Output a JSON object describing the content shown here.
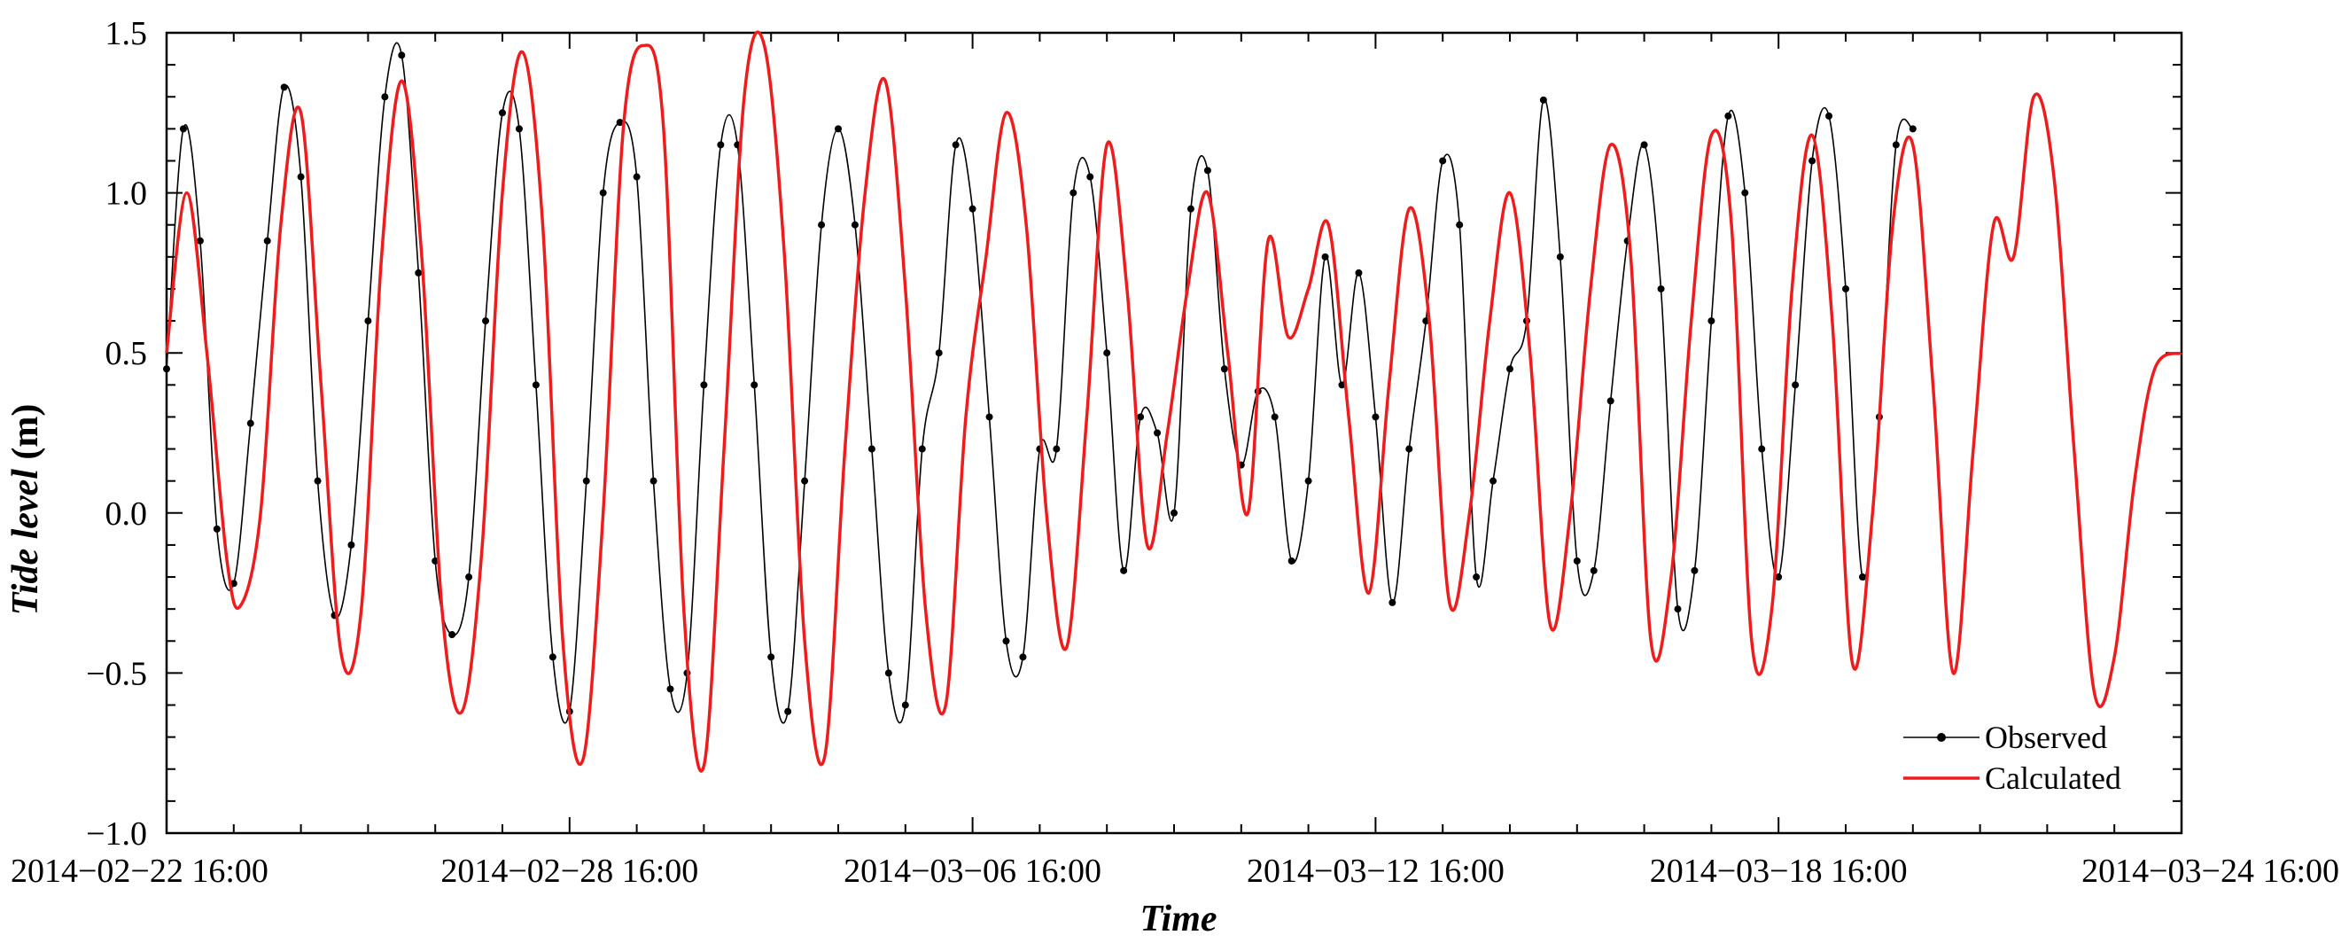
{
  "chart_data": {
    "type": "line",
    "title": "",
    "xlabel": "Time",
    "ylabel_main": "Tide level",
    "ylabel_unit": " (m)",
    "ylim": [
      -1.0,
      1.5
    ],
    "yticks": [
      -1.0,
      -0.5,
      0.0,
      0.5,
      1.0,
      1.5
    ],
    "ytick_labels": [
      "−1.0",
      "−0.5",
      "0.0",
      "0.5",
      "1.0",
      "1.5"
    ],
    "xlim_days": [
      0,
      30
    ],
    "xticks_days": [
      0,
      6,
      12,
      18,
      24,
      30
    ],
    "xtick_labels": [
      "2014−02−22 16:00",
      "2014−02−28 16:00",
      "2014−03−06 16:00",
      "2014−03−12 16:00",
      "2014−03−18 16:00",
      "2014−03−24 16:00"
    ],
    "legend_position": "bottom-right",
    "series": [
      {
        "name": "Observed",
        "color": "#000000",
        "marker": "dot",
        "x_unit": "days since 2014-02-22 16:00",
        "points": [
          [
            0.0,
            0.45
          ],
          [
            0.25,
            1.2
          ],
          [
            0.5,
            0.85
          ],
          [
            0.75,
            -0.05
          ],
          [
            1.0,
            -0.22
          ],
          [
            1.25,
            0.28
          ],
          [
            1.5,
            0.85
          ],
          [
            1.75,
            1.33
          ],
          [
            2.0,
            1.05
          ],
          [
            2.25,
            0.1
          ],
          [
            2.5,
            -0.32
          ],
          [
            2.75,
            -0.1
          ],
          [
            3.0,
            0.6
          ],
          [
            3.25,
            1.3
          ],
          [
            3.5,
            1.43
          ],
          [
            3.75,
            0.75
          ],
          [
            4.0,
            -0.15
          ],
          [
            4.25,
            -0.38
          ],
          [
            4.5,
            -0.2
          ],
          [
            4.75,
            0.6
          ],
          [
            5.0,
            1.25
          ],
          [
            5.25,
            1.2
          ],
          [
            5.5,
            0.4
          ],
          [
            5.75,
            -0.45
          ],
          [
            6.0,
            -0.62
          ],
          [
            6.25,
            0.1
          ],
          [
            6.5,
            1.0
          ],
          [
            6.75,
            1.22
          ],
          [
            7.0,
            1.05
          ],
          [
            7.25,
            0.1
          ],
          [
            7.5,
            -0.55
          ],
          [
            7.75,
            -0.5
          ],
          [
            8.0,
            0.4
          ],
          [
            8.25,
            1.15
          ],
          [
            8.5,
            1.15
          ],
          [
            8.75,
            0.4
          ],
          [
            9.0,
            -0.45
          ],
          [
            9.25,
            -0.62
          ],
          [
            9.5,
            0.1
          ],
          [
            9.75,
            0.9
          ],
          [
            10.0,
            1.2
          ],
          [
            10.25,
            0.9
          ],
          [
            10.5,
            0.2
          ],
          [
            10.75,
            -0.5
          ],
          [
            11.0,
            -0.6
          ],
          [
            11.25,
            0.2
          ],
          [
            11.5,
            0.5
          ],
          [
            11.75,
            1.15
          ],
          [
            12.0,
            0.95
          ],
          [
            12.25,
            0.3
          ],
          [
            12.5,
            -0.4
          ],
          [
            12.75,
            -0.45
          ],
          [
            13.0,
            0.2
          ],
          [
            13.25,
            0.2
          ],
          [
            13.5,
            1.0
          ],
          [
            13.75,
            1.05
          ],
          [
            14.0,
            0.5
          ],
          [
            14.25,
            -0.18
          ],
          [
            14.5,
            0.3
          ],
          [
            14.75,
            0.25
          ],
          [
            15.0,
            0.0
          ],
          [
            15.25,
            0.95
          ],
          [
            15.5,
            1.07
          ],
          [
            15.75,
            0.45
          ],
          [
            16.0,
            0.15
          ],
          [
            16.25,
            0.38
          ],
          [
            16.5,
            0.3
          ],
          [
            16.75,
            -0.15
          ],
          [
            17.0,
            0.1
          ],
          [
            17.25,
            0.8
          ],
          [
            17.5,
            0.4
          ],
          [
            17.75,
            0.75
          ],
          [
            18.0,
            0.3
          ],
          [
            18.25,
            -0.28
          ],
          [
            18.5,
            0.2
          ],
          [
            18.75,
            0.6
          ],
          [
            19.0,
            1.1
          ],
          [
            19.25,
            0.9
          ],
          [
            19.5,
            -0.2
          ],
          [
            19.75,
            0.1
          ],
          [
            20.0,
            0.45
          ],
          [
            20.25,
            0.6
          ],
          [
            20.5,
            1.29
          ],
          [
            20.75,
            0.8
          ],
          [
            21.0,
            -0.15
          ],
          [
            21.25,
            -0.18
          ],
          [
            21.5,
            0.35
          ],
          [
            21.75,
            0.85
          ],
          [
            22.0,
            1.15
          ],
          [
            22.25,
            0.7
          ],
          [
            22.5,
            -0.3
          ],
          [
            22.75,
            -0.18
          ],
          [
            23.0,
            0.6
          ],
          [
            23.25,
            1.24
          ],
          [
            23.5,
            1.0
          ],
          [
            23.75,
            0.2
          ],
          [
            24.0,
            -0.2
          ],
          [
            24.25,
            0.4
          ],
          [
            24.5,
            1.1
          ],
          [
            24.75,
            1.24
          ],
          [
            25.0,
            0.7
          ],
          [
            25.25,
            -0.2
          ],
          [
            25.5,
            0.3
          ],
          [
            25.75,
            1.15
          ],
          [
            26.0,
            1.2
          ]
        ]
      },
      {
        "name": "Calculated",
        "color": "#ee1c1c",
        "marker": "none",
        "x_unit": "days since 2014-02-22 16:00",
        "points": [
          [
            0.0,
            0.5
          ],
          [
            0.3,
            1.0
          ],
          [
            0.6,
            0.5
          ],
          [
            0.9,
            -0.15
          ],
          [
            1.1,
            -0.29
          ],
          [
            1.4,
            0.0
          ],
          [
            1.7,
            0.9
          ],
          [
            2.0,
            1.25
          ],
          [
            2.3,
            0.4
          ],
          [
            2.6,
            -0.44
          ],
          [
            2.9,
            -0.3
          ],
          [
            3.2,
            0.8
          ],
          [
            3.5,
            1.35
          ],
          [
            3.8,
            0.8
          ],
          [
            4.1,
            -0.3
          ],
          [
            4.4,
            -0.62
          ],
          [
            4.7,
            -0.1
          ],
          [
            5.0,
            1.0
          ],
          [
            5.3,
            1.44
          ],
          [
            5.6,
            0.9
          ],
          [
            5.9,
            -0.4
          ],
          [
            6.2,
            -0.77
          ],
          [
            6.5,
            0.0
          ],
          [
            6.8,
            1.2
          ],
          [
            7.1,
            1.46
          ],
          [
            7.4,
            1.2
          ],
          [
            7.7,
            -0.3
          ],
          [
            8.0,
            -0.79
          ],
          [
            8.3,
            0.2
          ],
          [
            8.6,
            1.3
          ],
          [
            8.9,
            1.46
          ],
          [
            9.2,
            0.8
          ],
          [
            9.5,
            -0.4
          ],
          [
            9.8,
            -0.76
          ],
          [
            10.1,
            0.2
          ],
          [
            10.4,
            1.0
          ],
          [
            10.7,
            1.35
          ],
          [
            11.0,
            0.7
          ],
          [
            11.3,
            -0.3
          ],
          [
            11.6,
            -0.6
          ],
          [
            11.9,
            0.3
          ],
          [
            12.2,
            0.8
          ],
          [
            12.5,
            1.25
          ],
          [
            12.8,
            0.9
          ],
          [
            13.1,
            0.0
          ],
          [
            13.4,
            -0.42
          ],
          [
            13.7,
            0.3
          ],
          [
            14.0,
            1.15
          ],
          [
            14.3,
            0.7
          ],
          [
            14.6,
            -0.1
          ],
          [
            14.9,
            0.25
          ],
          [
            15.2,
            0.7
          ],
          [
            15.5,
            1.0
          ],
          [
            15.8,
            0.5
          ],
          [
            16.1,
            0.0
          ],
          [
            16.4,
            0.85
          ],
          [
            16.7,
            0.55
          ],
          [
            17.0,
            0.7
          ],
          [
            17.3,
            0.9
          ],
          [
            17.6,
            0.3
          ],
          [
            17.9,
            -0.25
          ],
          [
            18.2,
            0.4
          ],
          [
            18.5,
            0.95
          ],
          [
            18.8,
            0.6
          ],
          [
            19.1,
            -0.28
          ],
          [
            19.4,
            0.0
          ],
          [
            19.7,
            0.6
          ],
          [
            20.0,
            1.0
          ],
          [
            20.3,
            0.5
          ],
          [
            20.6,
            -0.35
          ],
          [
            20.9,
            0.0
          ],
          [
            21.2,
            0.7
          ],
          [
            21.5,
            1.15
          ],
          [
            21.8,
            0.8
          ],
          [
            22.1,
            -0.4
          ],
          [
            22.4,
            -0.2
          ],
          [
            22.7,
            0.6
          ],
          [
            23.0,
            1.18
          ],
          [
            23.3,
            0.9
          ],
          [
            23.6,
            -0.4
          ],
          [
            23.9,
            -0.3
          ],
          [
            24.2,
            0.7
          ],
          [
            24.5,
            1.18
          ],
          [
            24.8,
            0.6
          ],
          [
            25.1,
            -0.47
          ],
          [
            25.4,
            0.0
          ],
          [
            25.7,
            0.9
          ],
          [
            26.0,
            1.15
          ],
          [
            26.3,
            0.4
          ],
          [
            26.6,
            -0.5
          ],
          [
            26.9,
            0.2
          ],
          [
            27.2,
            0.9
          ],
          [
            27.5,
            0.8
          ],
          [
            27.8,
            1.3
          ],
          [
            28.1,
            1.05
          ],
          [
            28.4,
            0.2
          ],
          [
            28.7,
            -0.56
          ],
          [
            29.0,
            -0.45
          ],
          [
            29.3,
            0.1
          ],
          [
            29.6,
            0.45
          ],
          [
            30.0,
            0.5
          ]
        ]
      }
    ]
  }
}
